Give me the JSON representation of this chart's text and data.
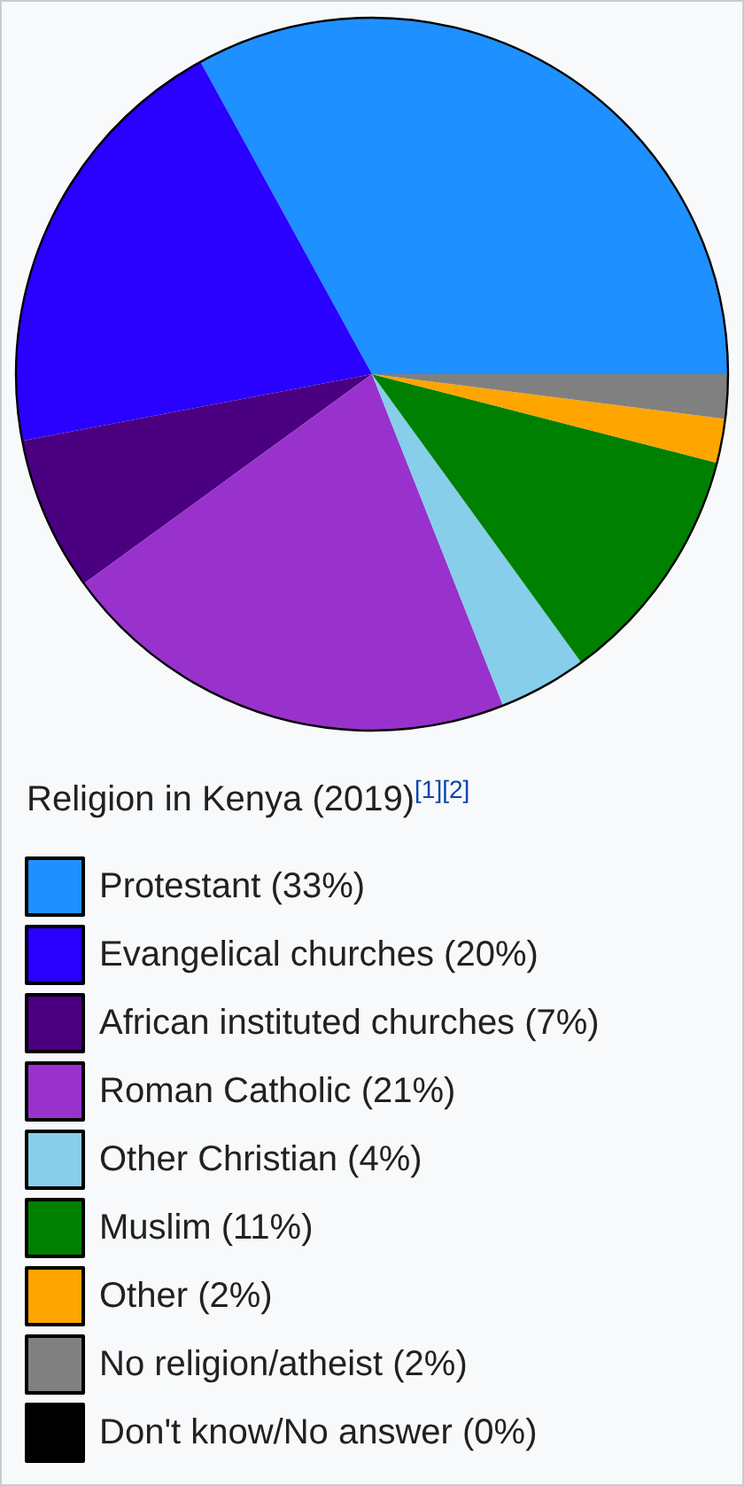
{
  "chart_data": {
    "type": "pie",
    "title": "Religion in Kenya (2019)$^{[1][2]}$",
    "categories": [
      "Protestant",
      "Evangelical churches",
      "African instituted churches",
      "Roman Catholic",
      "Other Christian",
      "Muslim",
      "Other",
      "No religion/atheist",
      "Don't know/No answer"
    ],
    "values": [
      33,
      20,
      7,
      21,
      4,
      11,
      2,
      2,
      0
    ],
    "value_labels": [
      "(33%)",
      "(20%)",
      "(7%)",
      "(21%)",
      "(4%)",
      "(11%)",
      "(2%)",
      "(2%)",
      "(0%)"
    ],
    "colors": [
      "#1e90ff",
      "#2a00ff",
      "#4b0082",
      "#9932cc",
      "#87ceeb",
      "#008000",
      "#ffa500",
      "#808080",
      "#000000"
    ],
    "legend": "bottom"
  }
}
